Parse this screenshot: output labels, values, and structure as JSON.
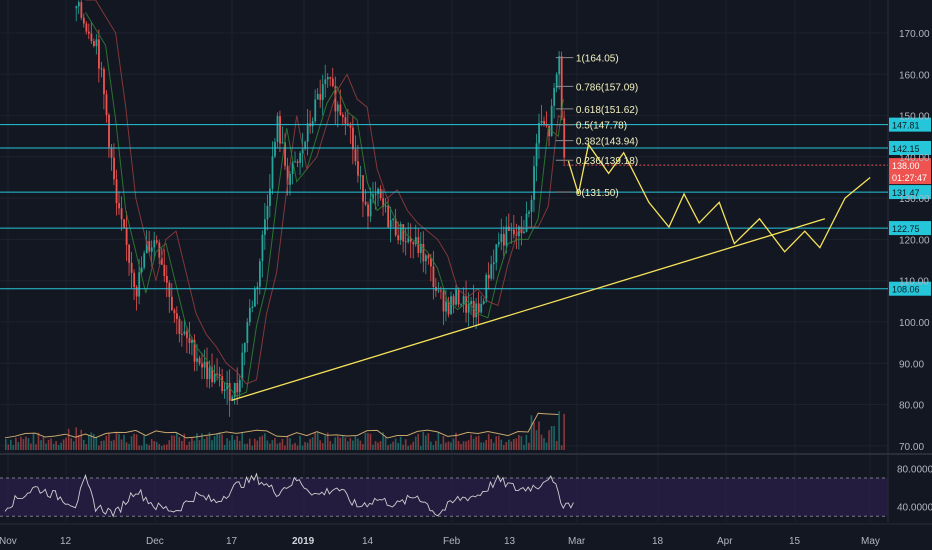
{
  "chart_data": {
    "type": "candlestick",
    "price_axis": {
      "ticks": [
        "170.00",
        "160.00",
        "150.00",
        "140.00",
        "130.00",
        "120.00",
        "110.00",
        "100.00",
        "90.00",
        "80.00",
        "70.00"
      ],
      "tick_values": [
        170,
        160,
        150,
        140,
        130,
        120,
        110,
        100,
        90,
        80,
        70
      ],
      "range": [
        68.5,
        178
      ]
    },
    "rsi_axis": {
      "ticks": [
        "80.0000",
        "40.0000"
      ],
      "tick_values": [
        80,
        40
      ],
      "range": [
        24,
        93
      ],
      "band": [
        30,
        70
      ]
    },
    "time_axis": {
      "labels": [
        {
          "text": "Nov",
          "bold": false
        },
        {
          "text": "12",
          "bold": false
        },
        {
          "text": "Dec",
          "bold": false
        },
        {
          "text": "17",
          "bold": false
        },
        {
          "text": "2019",
          "bold": true
        },
        {
          "text": "14",
          "bold": false
        },
        {
          "text": "Feb",
          "bold": false
        },
        {
          "text": "13",
          "bold": false
        },
        {
          "text": "Mar",
          "bold": false
        },
        {
          "text": "18",
          "bold": false
        },
        {
          "text": "Apr",
          "bold": false
        },
        {
          "text": "15",
          "bold": false
        },
        {
          "text": "May",
          "bold": false
        }
      ]
    },
    "horizontal_levels": [
      {
        "value": 147.81,
        "label": "147.81"
      },
      {
        "value": 142.15,
        "label": "142.15"
      },
      {
        "value": 131.47,
        "label": "131.47"
      },
      {
        "value": 122.75,
        "label": "122.75"
      },
      {
        "value": 108.06,
        "label": "108.06"
      }
    ],
    "current_price": {
      "value": 138.0,
      "label": "138.00",
      "countdown": "01:27:47"
    },
    "fibonacci": [
      {
        "level": "1",
        "price": "164.05",
        "value": 164.05
      },
      {
        "level": "0.786",
        "price": "157.09",
        "value": 157.09
      },
      {
        "level": "0.618",
        "price": "151.62",
        "value": 151.62
      },
      {
        "level": "0.5",
        "price": "147.78",
        "value": 147.78
      },
      {
        "level": "0.382",
        "price": "143.94",
        "value": 143.94
      },
      {
        "level": "0.236",
        "price": "139.18",
        "value": 139.18
      },
      {
        "level": "0",
        "price": "131.50",
        "value": 131.5
      }
    ],
    "trendline": {
      "from": {
        "day": 45,
        "price": 81
      },
      "to": {
        "day": 163,
        "price": 125
      }
    },
    "projection": [
      {
        "day": 112,
        "price": 139
      },
      {
        "day": 114,
        "price": 131
      },
      {
        "day": 116,
        "price": 143
      },
      {
        "day": 120,
        "price": 136
      },
      {
        "day": 123,
        "price": 141
      },
      {
        "day": 128,
        "price": 129
      },
      {
        "day": 132,
        "price": 123
      },
      {
        "day": 135,
        "price": 131
      },
      {
        "day": 138,
        "price": 124
      },
      {
        "day": 142,
        "price": 129
      },
      {
        "day": 145,
        "price": 119
      },
      {
        "day": 150,
        "price": 125
      },
      {
        "day": 155,
        "price": 117
      },
      {
        "day": 159,
        "price": 122
      },
      {
        "day": 162,
        "price": 118
      },
      {
        "day": 167,
        "price": 130
      },
      {
        "day": 172,
        "price": 135
      }
    ],
    "price_path": [
      {
        "day": 14,
        "price": 176
      },
      {
        "day": 16,
        "price": 172
      },
      {
        "day": 18,
        "price": 168
      },
      {
        "day": 20,
        "price": 150
      },
      {
        "day": 22,
        "price": 128
      },
      {
        "day": 24,
        "price": 118
      },
      {
        "day": 26,
        "price": 108
      },
      {
        "day": 28,
        "price": 118
      },
      {
        "day": 30,
        "price": 120
      },
      {
        "day": 32,
        "price": 110
      },
      {
        "day": 34,
        "price": 100
      },
      {
        "day": 36,
        "price": 95
      },
      {
        "day": 38,
        "price": 92
      },
      {
        "day": 40,
        "price": 88
      },
      {
        "day": 42,
        "price": 86
      },
      {
        "day": 44,
        "price": 83
      },
      {
        "day": 46,
        "price": 84
      },
      {
        "day": 48,
        "price": 100
      },
      {
        "day": 50,
        "price": 110
      },
      {
        "day": 52,
        "price": 130
      },
      {
        "day": 54,
        "price": 148
      },
      {
        "day": 56,
        "price": 135
      },
      {
        "day": 58,
        "price": 138
      },
      {
        "day": 60,
        "price": 146
      },
      {
        "day": 62,
        "price": 154
      },
      {
        "day": 64,
        "price": 158
      },
      {
        "day": 66,
        "price": 152
      },
      {
        "day": 68,
        "price": 150
      },
      {
        "day": 70,
        "price": 135
      },
      {
        "day": 72,
        "price": 128
      },
      {
        "day": 74,
        "price": 130
      },
      {
        "day": 76,
        "price": 125
      },
      {
        "day": 78,
        "price": 122
      },
      {
        "day": 80,
        "price": 120
      },
      {
        "day": 82,
        "price": 118
      },
      {
        "day": 84,
        "price": 114
      },
      {
        "day": 86,
        "price": 106
      },
      {
        "day": 88,
        "price": 104
      },
      {
        "day": 90,
        "price": 106
      },
      {
        "day": 92,
        "price": 103
      },
      {
        "day": 94,
        "price": 102
      },
      {
        "day": 96,
        "price": 112
      },
      {
        "day": 98,
        "price": 120
      },
      {
        "day": 100,
        "price": 121
      },
      {
        "day": 102,
        "price": 121
      },
      {
        "day": 104,
        "price": 126
      },
      {
        "day": 106,
        "price": 148
      },
      {
        "day": 108,
        "price": 146
      },
      {
        "day": 110,
        "price": 164
      },
      {
        "day": 111,
        "price": 138
      }
    ],
    "rsi_path": [
      {
        "day": 0,
        "rsi": 40
      },
      {
        "day": 6,
        "rsi": 60
      },
      {
        "day": 10,
        "rsi": 52
      },
      {
        "day": 14,
        "rsi": 42
      },
      {
        "day": 16,
        "rsi": 68
      },
      {
        "day": 18,
        "rsi": 40
      },
      {
        "day": 22,
        "rsi": 33
      },
      {
        "day": 26,
        "rsi": 58
      },
      {
        "day": 30,
        "rsi": 40
      },
      {
        "day": 34,
        "rsi": 36
      },
      {
        "day": 38,
        "rsi": 52
      },
      {
        "day": 42,
        "rsi": 45
      },
      {
        "day": 46,
        "rsi": 62
      },
      {
        "day": 50,
        "rsi": 70
      },
      {
        "day": 54,
        "rsi": 55
      },
      {
        "day": 58,
        "rsi": 68
      },
      {
        "day": 62,
        "rsi": 52
      },
      {
        "day": 66,
        "rsi": 60
      },
      {
        "day": 70,
        "rsi": 40
      },
      {
        "day": 74,
        "rsi": 48
      },
      {
        "day": 78,
        "rsi": 42
      },
      {
        "day": 82,
        "rsi": 52
      },
      {
        "day": 86,
        "rsi": 32
      },
      {
        "day": 90,
        "rsi": 48
      },
      {
        "day": 94,
        "rsi": 52
      },
      {
        "day": 98,
        "rsi": 68
      },
      {
        "day": 102,
        "rsi": 58
      },
      {
        "day": 106,
        "rsi": 62
      },
      {
        "day": 108,
        "rsi": 72
      },
      {
        "day": 110,
        "rsi": 55
      },
      {
        "day": 111,
        "rsi": 42
      },
      {
        "day": 113,
        "rsi": 44
      }
    ]
  },
  "colors": {
    "background": "#131722",
    "grid": "#1e222d",
    "level_line": "#26c6da",
    "level_label_bg": "#26c6da",
    "current_price_bg": "#ef5350",
    "fib_text": "#f2f2c0",
    "trendline": "#f7e35a",
    "projection": "#f7e35a",
    "up": "#26a69a",
    "down": "#ef5350",
    "rsi_line": "#cfcfcf",
    "rsi_band": "#2a1f4a"
  }
}
